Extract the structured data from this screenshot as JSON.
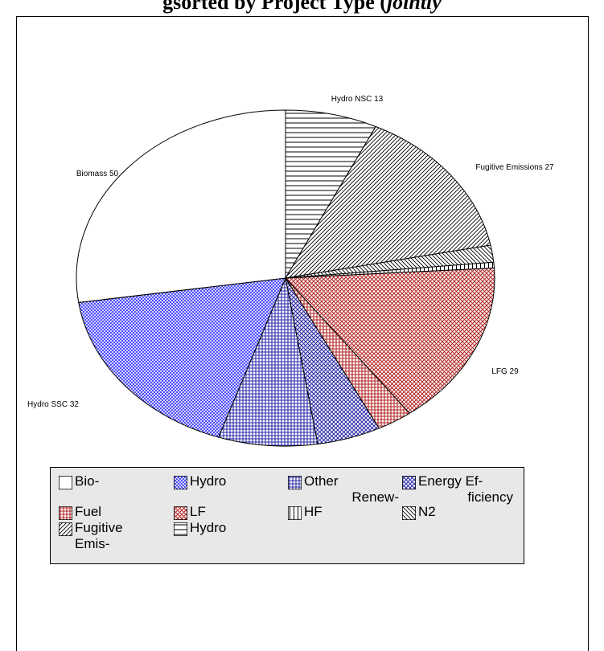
{
  "page": {
    "title_prefix": "g",
    "title_bold": "sorted by Project Type (",
    "title_italic": "jointly"
  },
  "chart_data": {
    "type": "pie",
    "title": "",
    "start_angle_deg": 0,
    "direction": "clockwise",
    "slices": [
      {
        "name": "Hydro",
        "value": 13,
        "label": "Hydro NSC 13",
        "fill": "pattern-horizontal",
        "color": "#000000"
      },
      {
        "name": "Fugitive Emis-",
        "value": 27,
        "label": "Fugitive Emissions 27",
        "fill": "pattern-diagonal-fine",
        "color": "#000000"
      },
      {
        "name": "N2",
        "value": 3,
        "label": "",
        "fill": "pattern-diagonal-back",
        "color": "#000000"
      },
      {
        "name": "HF",
        "value": 1,
        "label": "",
        "fill": "pattern-vertical",
        "color": "#000000"
      },
      {
        "name": "LF",
        "value": 29,
        "label": "LFG 29",
        "fill": "pattern-crosshatch-red",
        "color": "#b22222"
      },
      {
        "name": "Fuel",
        "value": 5,
        "label": "",
        "fill": "pattern-grid-red",
        "color": "#b22222"
      },
      {
        "name": "Energy Ef-ficiency",
        "value": 9,
        "label": "",
        "fill": "pattern-crosshatch-blue",
        "color": "#2a2aa8"
      },
      {
        "name": "Other Renew-",
        "value": 14,
        "label": "",
        "fill": "pattern-grid-blue",
        "color": "#2a2aa8"
      },
      {
        "name": "Hydro",
        "value": 32,
        "label": "Hydro SSC 32",
        "fill": "pattern-crosshatch-blue-fine",
        "color": "#3333ff"
      },
      {
        "name": "Bio-",
        "value": 50,
        "label": "Biomass 50",
        "fill": "solid-white",
        "color": "#ffffff"
      }
    ],
    "legend": {
      "placement": "bottom",
      "rows": [
        [
          {
            "label": "Bio-",
            "fill": "solid-white"
          },
          {
            "label": "Hydro",
            "fill": "pattern-crosshatch-blue-fine"
          },
          {
            "label": "Other\nRenew-",
            "fill": "pattern-grid-blue"
          },
          {
            "label": "Energy Ef-\nficiency",
            "fill": "pattern-crosshatch-blue"
          }
        ],
        [
          {
            "label": "Fuel",
            "fill": "pattern-grid-red"
          },
          {
            "label": "LF",
            "fill": "pattern-crosshatch-red"
          },
          {
            "label": "HF",
            "fill": "pattern-vertical"
          },
          {
            "label": "N2",
            "fill": "pattern-diagonal-back"
          }
        ],
        [
          {
            "label": "Fugitive\nEmis-",
            "fill": "pattern-diagonal-fine"
          },
          {
            "label": "Hydro",
            "fill": "pattern-horizontal"
          }
        ]
      ]
    }
  }
}
